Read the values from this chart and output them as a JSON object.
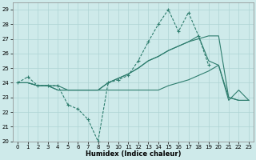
{
  "xlabel": "Humidex (Indice chaleur)",
  "bg_color": "#ceeaea",
  "grid_color": "#aed4d4",
  "line_color": "#2e7d6e",
  "xlim": [
    -0.5,
    23.5
  ],
  "ylim": [
    20,
    29.5
  ],
  "yticks": [
    20,
    21,
    22,
    23,
    24,
    25,
    26,
    27,
    28,
    29
  ],
  "xticks": [
    0,
    1,
    2,
    3,
    4,
    5,
    6,
    7,
    8,
    9,
    10,
    11,
    12,
    13,
    14,
    15,
    16,
    17,
    18,
    19,
    20,
    21,
    22,
    23
  ],
  "series": [
    [
      24.0,
      24.4,
      23.8,
      23.8,
      23.8,
      22.5,
      22.2,
      21.5,
      20.0,
      24.0,
      24.2,
      24.5,
      25.5,
      26.8,
      28.0,
      29.0,
      27.5,
      28.8,
      27.2,
      25.2,
      null,
      null,
      null,
      null
    ],
    [
      24.0,
      24.0,
      23.8,
      23.8,
      23.8,
      23.5,
      23.5,
      23.5,
      23.5,
      23.5,
      23.5,
      23.5,
      23.5,
      23.5,
      23.5,
      23.8,
      24.0,
      24.2,
      24.5,
      24.8,
      25.2,
      23.0,
      22.8,
      22.8
    ],
    [
      24.0,
      24.0,
      23.8,
      23.8,
      23.5,
      23.5,
      23.5,
      23.5,
      23.5,
      24.0,
      24.3,
      24.6,
      25.0,
      25.5,
      25.8,
      26.2,
      26.5,
      26.8,
      27.0,
      27.2,
      27.2,
      23.0,
      22.8,
      22.8
    ],
    [
      24.0,
      24.0,
      23.8,
      23.8,
      23.5,
      23.5,
      23.5,
      23.5,
      23.5,
      24.0,
      24.3,
      24.6,
      25.0,
      25.5,
      25.8,
      26.2,
      26.5,
      26.8,
      27.2,
      25.5,
      25.2,
      22.8,
      23.5,
      22.8
    ]
  ],
  "markers": [
    true,
    false,
    false,
    false
  ]
}
